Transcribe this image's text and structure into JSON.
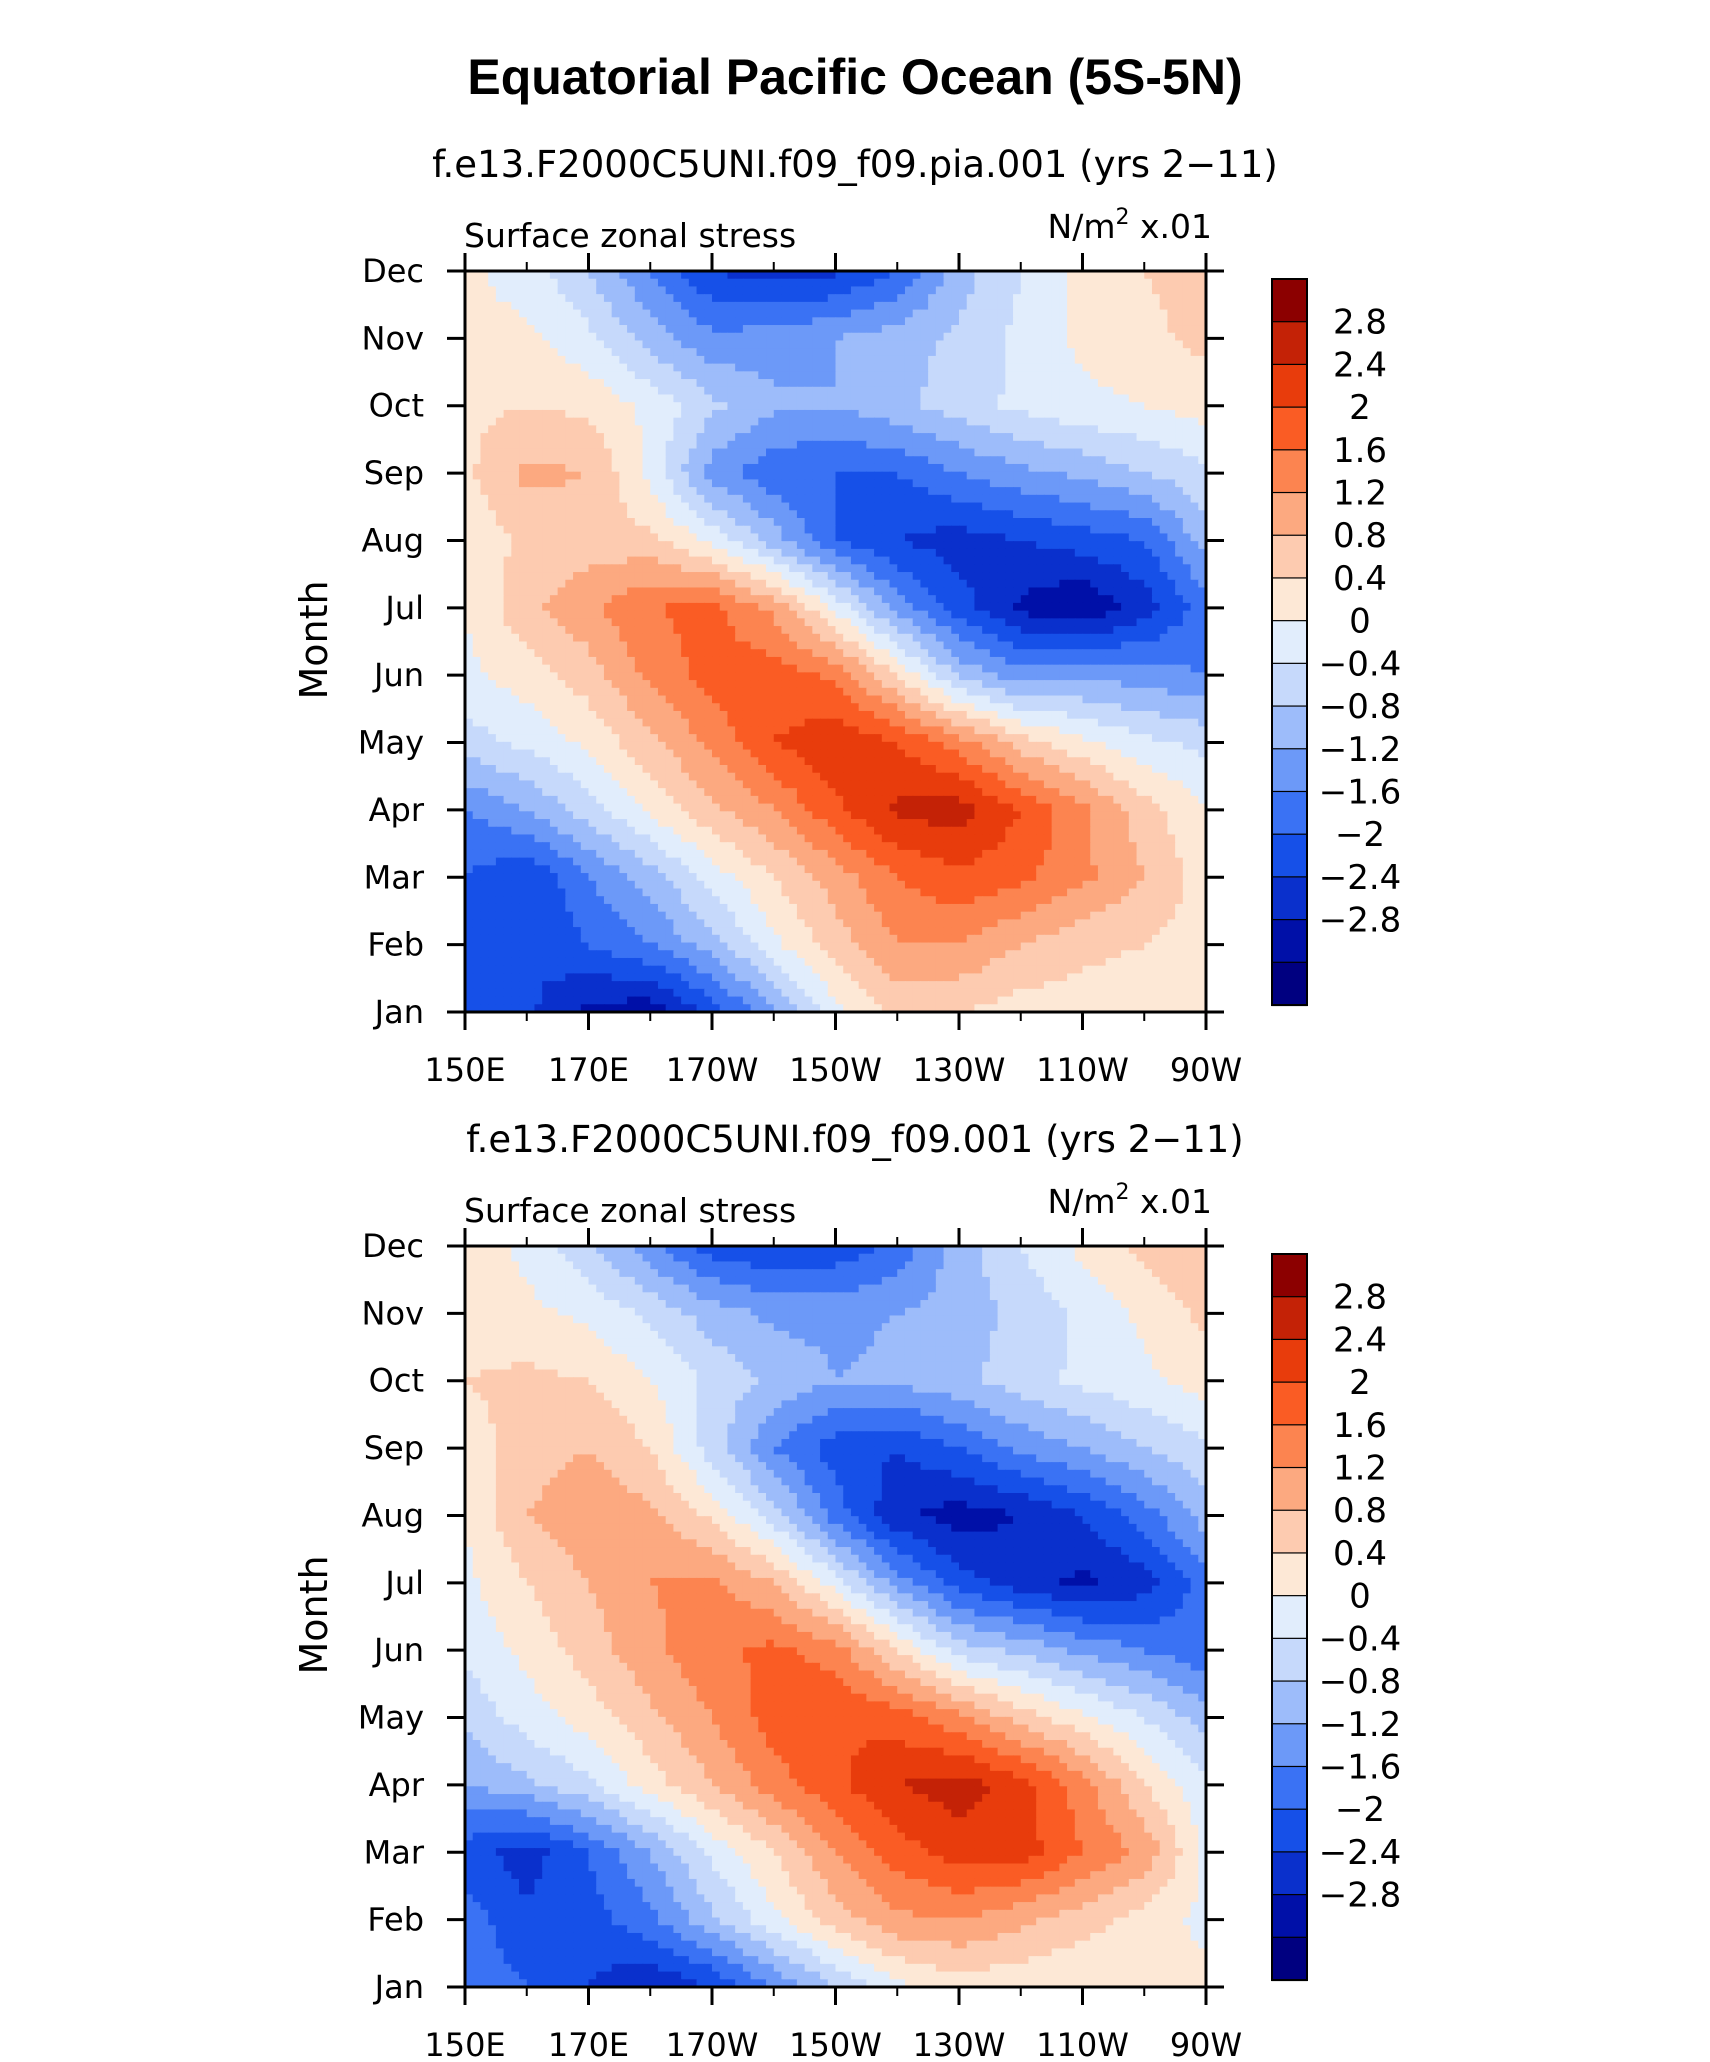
{
  "figure_title": "Equatorial Pacific Ocean (5S-5N)",
  "palette": [
    "#000080",
    "#0010a8",
    "#0a30cc",
    "#1650e8",
    "#3a72f4",
    "#6c99f8",
    "#9dbcfa",
    "#c6d9fb",
    "#e1edfc",
    "#fde8d6",
    "#fdcbb0",
    "#fca980",
    "#fc8450",
    "#fa5c24",
    "#e83c0c",
    "#c42206",
    "#8c0000"
  ],
  "chart_data": [
    {
      "type": "heatmap",
      "title": "f.e13.F2000C5UNI.f09_f09.pia.001 (yrs 2−11)",
      "left_header": "Surface zonal stress",
      "units_prefix": "N/m",
      "units_exp": "2",
      "units_suffix": " x.01",
      "ylabel": "Month",
      "x": [
        150,
        170,
        190,
        210,
        230,
        250,
        270
      ],
      "x_tick_labels": [
        "150E",
        "170E",
        "170W",
        "150W",
        "130W",
        "110W",
        "90W"
      ],
      "y": [
        "Jan",
        "Feb",
        "Mar",
        "Apr",
        "May",
        "Jun",
        "Jul",
        "Aug",
        "Sep",
        "Oct",
        "Nov",
        "Dec"
      ],
      "z": [
        [
          -1.8,
          -1.9,
          -2.5,
          -2.7,
          -1.8,
          -0.9,
          0.3,
          0.9,
          0.8,
          0.6,
          0.6,
          0.6,
          0.6
        ],
        [
          -1.8,
          -2.0,
          -1.6,
          -1.2,
          -0.6,
          0.3,
          1.0,
          1.6,
          1.6,
          1.2,
          0.9,
          0.8,
          0.6
        ],
        [
          -1.6,
          -2.0,
          -1.2,
          -0.6,
          0.2,
          0.8,
          1.4,
          2.0,
          2.3,
          2.1,
          1.7,
          1.2,
          0.6
        ],
        [
          -1.2,
          -0.8,
          -0.2,
          0.5,
          1.1,
          1.6,
          2.3,
          2.9,
          3.0,
          2.4,
          1.7,
          1.0,
          0.4
        ],
        [
          -0.2,
          0.1,
          0.5,
          1.1,
          1.7,
          2.4,
          2.7,
          2.4,
          1.8,
          1.0,
          0.5,
          0.1,
          -0.1
        ],
        [
          0.3,
          0.6,
          1.0,
          1.7,
          2.2,
          2.2,
          1.9,
          0.8,
          -0.5,
          -1.0,
          -0.9,
          -1.0,
          -1.2
        ],
        [
          0.4,
          1.1,
          1.5,
          2.0,
          2.1,
          1.5,
          0.3,
          -1.0,
          -1.8,
          -2.5,
          -2.8,
          -2.2,
          -1.4
        ],
        [
          0.5,
          0.9,
          1.0,
          0.9,
          0.3,
          -0.6,
          -1.6,
          -2.0,
          -2.2,
          -2.0,
          -1.8,
          -1.6,
          -0.6
        ],
        [
          0.7,
          1.3,
          1.2,
          0.3,
          -1.0,
          -1.5,
          -1.6,
          -1.6,
          -1.2,
          -0.9,
          -0.7,
          -0.4,
          -0.1
        ],
        [
          0.7,
          0.8,
          0.7,
          0.3,
          -0.3,
          -0.7,
          -0.8,
          -0.5,
          -0.2,
          0.1,
          0.3,
          0.4,
          0.6
        ],
        [
          0.5,
          0.5,
          0.1,
          -0.6,
          -1.1,
          -1.0,
          -0.8,
          -0.6,
          -0.3,
          0.1,
          0.5,
          0.7,
          0.9
        ],
        [
          0.5,
          0.2,
          -0.4,
          -1.2,
          -2.0,
          -2.2,
          -2.1,
          -1.6,
          -0.6,
          0.0,
          0.5,
          0.8,
          1.0
        ]
      ],
      "levels": [
        -2.8,
        -2.4,
        -2,
        -1.6,
        -1.2,
        -0.8,
        -0.4,
        0,
        0.4,
        0.8,
        1.2,
        1.6,
        2,
        2.4,
        2.8
      ],
      "colorbar_labels": [
        "2.8",
        "2.4",
        "2",
        "1.6",
        "1.2",
        "0.8",
        "0.4",
        "0",
        "−0.4",
        "−0.8",
        "−1.2",
        "−1.6",
        "−2",
        "−2.4",
        "−2.8"
      ]
    },
    {
      "type": "heatmap",
      "title": "f.e13.F2000C5UNI.f09_f09.001 (yrs 2−11)",
      "left_header": "Surface zonal stress",
      "units_prefix": "N/m",
      "units_exp": "2",
      "units_suffix": " x.01",
      "ylabel": "Month",
      "x": [
        150,
        170,
        190,
        210,
        230,
        250,
        270
      ],
      "x_tick_labels": [
        "150E",
        "170E",
        "170W",
        "150W",
        "130W",
        "110W",
        "90W"
      ],
      "y": [
        "Jan",
        "Feb",
        "Mar",
        "Apr",
        "May",
        "Jun",
        "Jul",
        "Aug",
        "Sep",
        "Oct",
        "Nov",
        "Dec"
      ],
      "z": [
        [
          -1.3,
          -1.6,
          -2.0,
          -2.4,
          -2.0,
          -1.2,
          -0.4,
          0.3,
          0.6,
          0.5,
          0.4,
          0.4,
          0.5
        ],
        [
          -1.4,
          -1.9,
          -1.8,
          -1.3,
          -0.5,
          0.3,
          1.0,
          1.5,
          1.6,
          1.3,
          1.0,
          0.6,
          0.3
        ],
        [
          -1.8,
          -2.2,
          -1.6,
          -0.8,
          0.1,
          0.8,
          1.6,
          2.2,
          2.6,
          2.6,
          2.0,
          1.5,
          0.3
        ],
        [
          -0.8,
          -0.5,
          -0.1,
          0.6,
          1.2,
          1.8,
          2.3,
          2.8,
          3.0,
          2.6,
          1.8,
          0.8,
          0.1
        ],
        [
          -0.3,
          0.2,
          0.6,
          1.1,
          1.6,
          2.2,
          2.4,
          2.2,
          1.7,
          1.0,
          0.5,
          0.0,
          -0.6
        ],
        [
          0.1,
          0.5,
          1.0,
          1.5,
          1.9,
          2.1,
          1.8,
          0.8,
          -0.2,
          -0.5,
          -0.9,
          -1.2,
          -1.5
        ],
        [
          0.3,
          0.8,
          1.2,
          1.6,
          1.7,
          1.2,
          0.2,
          -1.0,
          -1.8,
          -2.2,
          -2.5,
          -2.2,
          -1.4
        ],
        [
          0.4,
          1.2,
          1.5,
          1.3,
          0.7,
          -0.2,
          -1.4,
          -2.3,
          -2.6,
          -2.4,
          -2.0,
          -1.4,
          -0.6
        ],
        [
          0.6,
          1.0,
          1.2,
          0.8,
          -0.2,
          -1.2,
          -1.8,
          -2.0,
          -1.6,
          -1.1,
          -0.8,
          -0.4,
          -0.1
        ],
        [
          0.8,
          0.9,
          0.8,
          0.4,
          -0.1,
          -0.5,
          -0.8,
          -0.7,
          -0.5,
          -0.2,
          0.1,
          0.3,
          0.6
        ],
        [
          0.6,
          0.5,
          0.3,
          -0.1,
          -0.6,
          -0.9,
          -0.9,
          -0.8,
          -0.6,
          -0.3,
          0.1,
          0.5,
          0.9
        ],
        [
          0.6,
          0.3,
          -0.3,
          -1.1,
          -1.8,
          -2.0,
          -1.9,
          -1.5,
          -0.6,
          0.0,
          0.5,
          0.9,
          1.2
        ]
      ],
      "levels": [
        -2.8,
        -2.4,
        -2,
        -1.6,
        -1.2,
        -0.8,
        -0.4,
        0,
        0.4,
        0.8,
        1.2,
        1.6,
        2,
        2.4,
        2.8
      ],
      "colorbar_labels": [
        "2.8",
        "2.4",
        "2",
        "1.6",
        "1.2",
        "0.8",
        "0.4",
        "0",
        "−0.4",
        "−0.8",
        "−1.2",
        "−1.6",
        "−2",
        "−2.4",
        "−2.8"
      ]
    }
  ]
}
